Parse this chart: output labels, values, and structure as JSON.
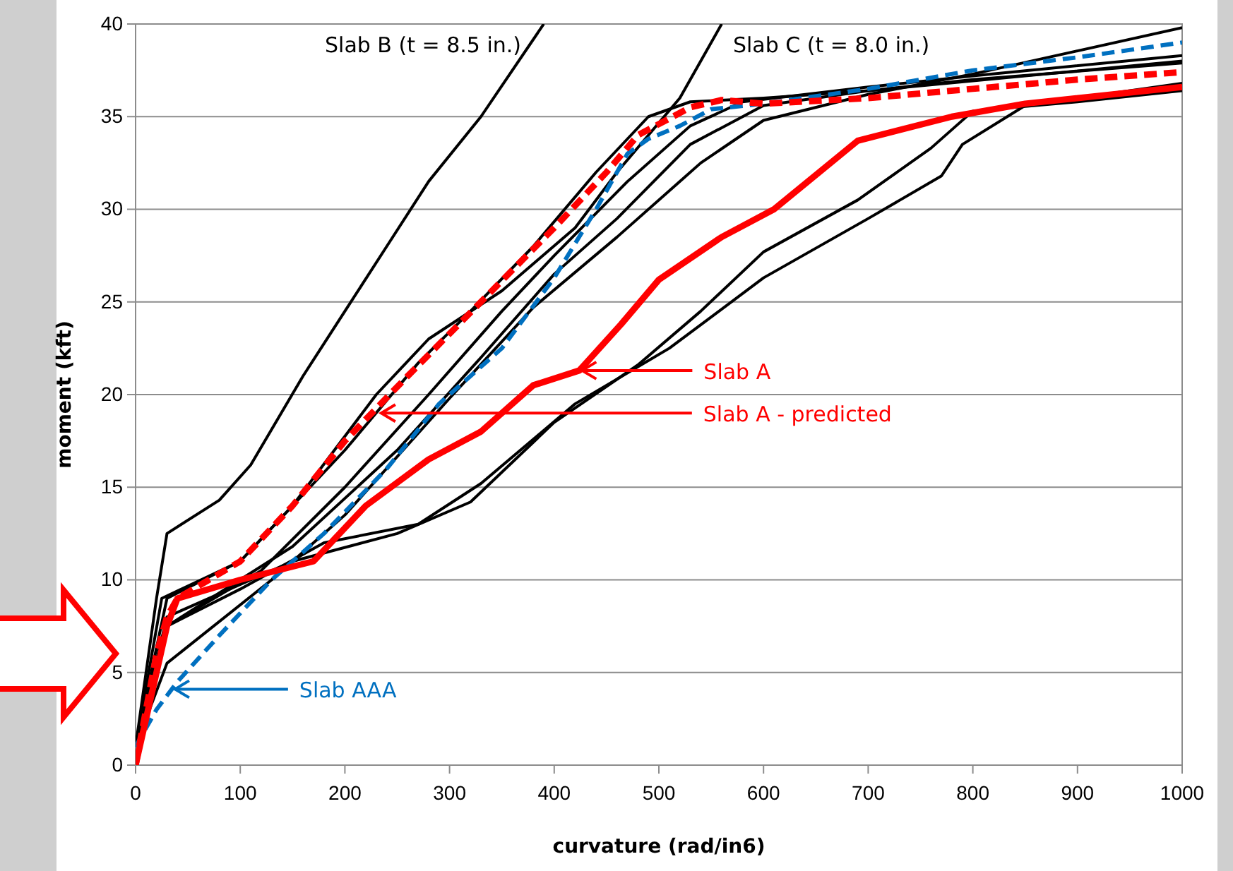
{
  "chart_data": {
    "type": "line",
    "xlabel": "curvature (rad/in6)",
    "ylabel": "moment (kft)",
    "xlim": [
      0,
      1000
    ],
    "xticks": [
      0,
      100,
      200,
      300,
      400,
      500,
      600,
      700,
      800,
      900,
      1000
    ],
    "ylim": [
      0,
      40
    ],
    "yticks": [
      0,
      5,
      10,
      15,
      20,
      25,
      30,
      35,
      40
    ],
    "grid": "y",
    "marker": "none",
    "series": [
      {
        "color": "#000000",
        "x": [
          0,
          20,
          30,
          80,
          110,
          160,
          200,
          240,
          280,
          330,
          360,
          390
        ],
        "values": [
          1,
          9,
          12.5,
          14.3,
          16.2,
          21,
          24.5,
          28,
          31.5,
          35,
          37.5,
          40
        ]
      },
      {
        "color": "#000000",
        "x": [
          0,
          30,
          100,
          150,
          230,
          280,
          350,
          420,
          460,
          490,
          520,
          540,
          560
        ],
        "values": [
          1,
          9,
          11,
          14,
          20,
          23,
          25.6,
          29,
          32,
          34,
          36,
          38,
          40
        ]
      },
      {
        "color": "#000000",
        "x": [
          0,
          25,
          100,
          200,
          270,
          320,
          380,
          440,
          490,
          530,
          600,
          700,
          800,
          1000
        ],
        "values": [
          1,
          9,
          11,
          17,
          21.7,
          24.5,
          28,
          32,
          35,
          35.8,
          36,
          36.4,
          37,
          37.9
        ]
      },
      {
        "color": "#000000",
        "x": [
          0,
          30,
          120,
          200,
          280,
          350,
          400,
          470,
          530,
          580,
          700,
          800,
          1000
        ],
        "values": [
          1,
          7.5,
          10.5,
          15,
          20,
          24.5,
          27.5,
          31.5,
          34.5,
          35.8,
          36.6,
          37.2,
          38.3
        ]
      },
      {
        "color": "#000000",
        "x": [
          0,
          30,
          150,
          250,
          330,
          400,
          460,
          530,
          600,
          700,
          850,
          1000
        ],
        "values": [
          1,
          7.5,
          11.8,
          17,
          22,
          26.5,
          29.5,
          33.5,
          35.6,
          36.4,
          37.2,
          38
        ]
      },
      {
        "color": "#000000",
        "x": [
          0,
          30,
          130,
          200,
          300,
          380,
          460,
          540,
          600,
          700,
          800,
          1000
        ],
        "values": [
          1,
          5.5,
          10,
          13.5,
          19.8,
          24.7,
          28.5,
          32.5,
          34.8,
          36.2,
          37.3,
          39.8
        ]
      },
      {
        "color": "#000000",
        "x": [
          0,
          30,
          150,
          250,
          320,
          400,
          480,
          540,
          600,
          690,
          760,
          800,
          900,
          1000
        ],
        "values": [
          1,
          8,
          11,
          12.5,
          14.2,
          18.5,
          21.6,
          24.5,
          27.7,
          30.5,
          33.3,
          35.3,
          35.8,
          36.4
        ]
      },
      {
        "color": "#000000",
        "x": [
          0,
          30,
          100,
          180,
          270,
          330,
          420,
          510,
          600,
          700,
          770,
          790,
          850,
          1000
        ],
        "values": [
          1,
          7.5,
          9.5,
          12,
          13,
          15.2,
          19.5,
          22.5,
          26.3,
          29.5,
          31.8,
          33.5,
          35.6,
          36.8
        ]
      },
      {
        "color": "#0070c0",
        "line_style": "dashed",
        "x": [
          0,
          20,
          40,
          80,
          130,
          180,
          240,
          290,
          350,
          400,
          440,
          470,
          490,
          520,
          550,
          600,
          700,
          800,
          900,
          1000
        ],
        "values": [
          1,
          3,
          4.5,
          7,
          10,
          12.5,
          16,
          19.5,
          22.5,
          26.3,
          30,
          33,
          33.8,
          34.5,
          35.4,
          35.7,
          36.5,
          37.5,
          38.2,
          39
        ]
      },
      {
        "color": "#ff0000",
        "x": [
          0,
          20,
          30,
          40,
          100,
          170,
          220,
          280,
          330,
          380,
          424,
          464,
          500,
          560,
          610,
          690,
          780,
          850,
          1000
        ],
        "values": [
          0,
          5,
          7.5,
          9,
          10,
          11,
          14,
          16.5,
          18,
          20.5,
          21.3,
          23.8,
          26.2,
          28.5,
          30,
          33.7,
          35,
          35.7,
          36.6
        ]
      },
      {
        "color": "#ff0000",
        "line_style": "dashed",
        "x": [
          0,
          20,
          30,
          40,
          100,
          150,
          200,
          260,
          330,
          400,
          450,
          480,
          530,
          560,
          600,
          700,
          800,
          900,
          1000
        ],
        "values": [
          0,
          6,
          8,
          9,
          11,
          14,
          17.5,
          21,
          25,
          29,
          32,
          34,
          35.5,
          35.9,
          35.7,
          36,
          36.5,
          37,
          37.4
        ]
      }
    ],
    "annotations": [
      {
        "text": "Slab B (t = 8.5 in.)",
        "x": 390,
        "y": 40
      },
      {
        "text": "Slab C (t = 8.0 in.)",
        "x": 560,
        "y": 40
      },
      {
        "text": "Slab A",
        "x": 424,
        "y": 21.3
      },
      {
        "text": "Slab A - predicted",
        "x": 232,
        "y": 19
      },
      {
        "text": "Slab AAA",
        "x": 35,
        "y": 4.1
      }
    ]
  }
}
